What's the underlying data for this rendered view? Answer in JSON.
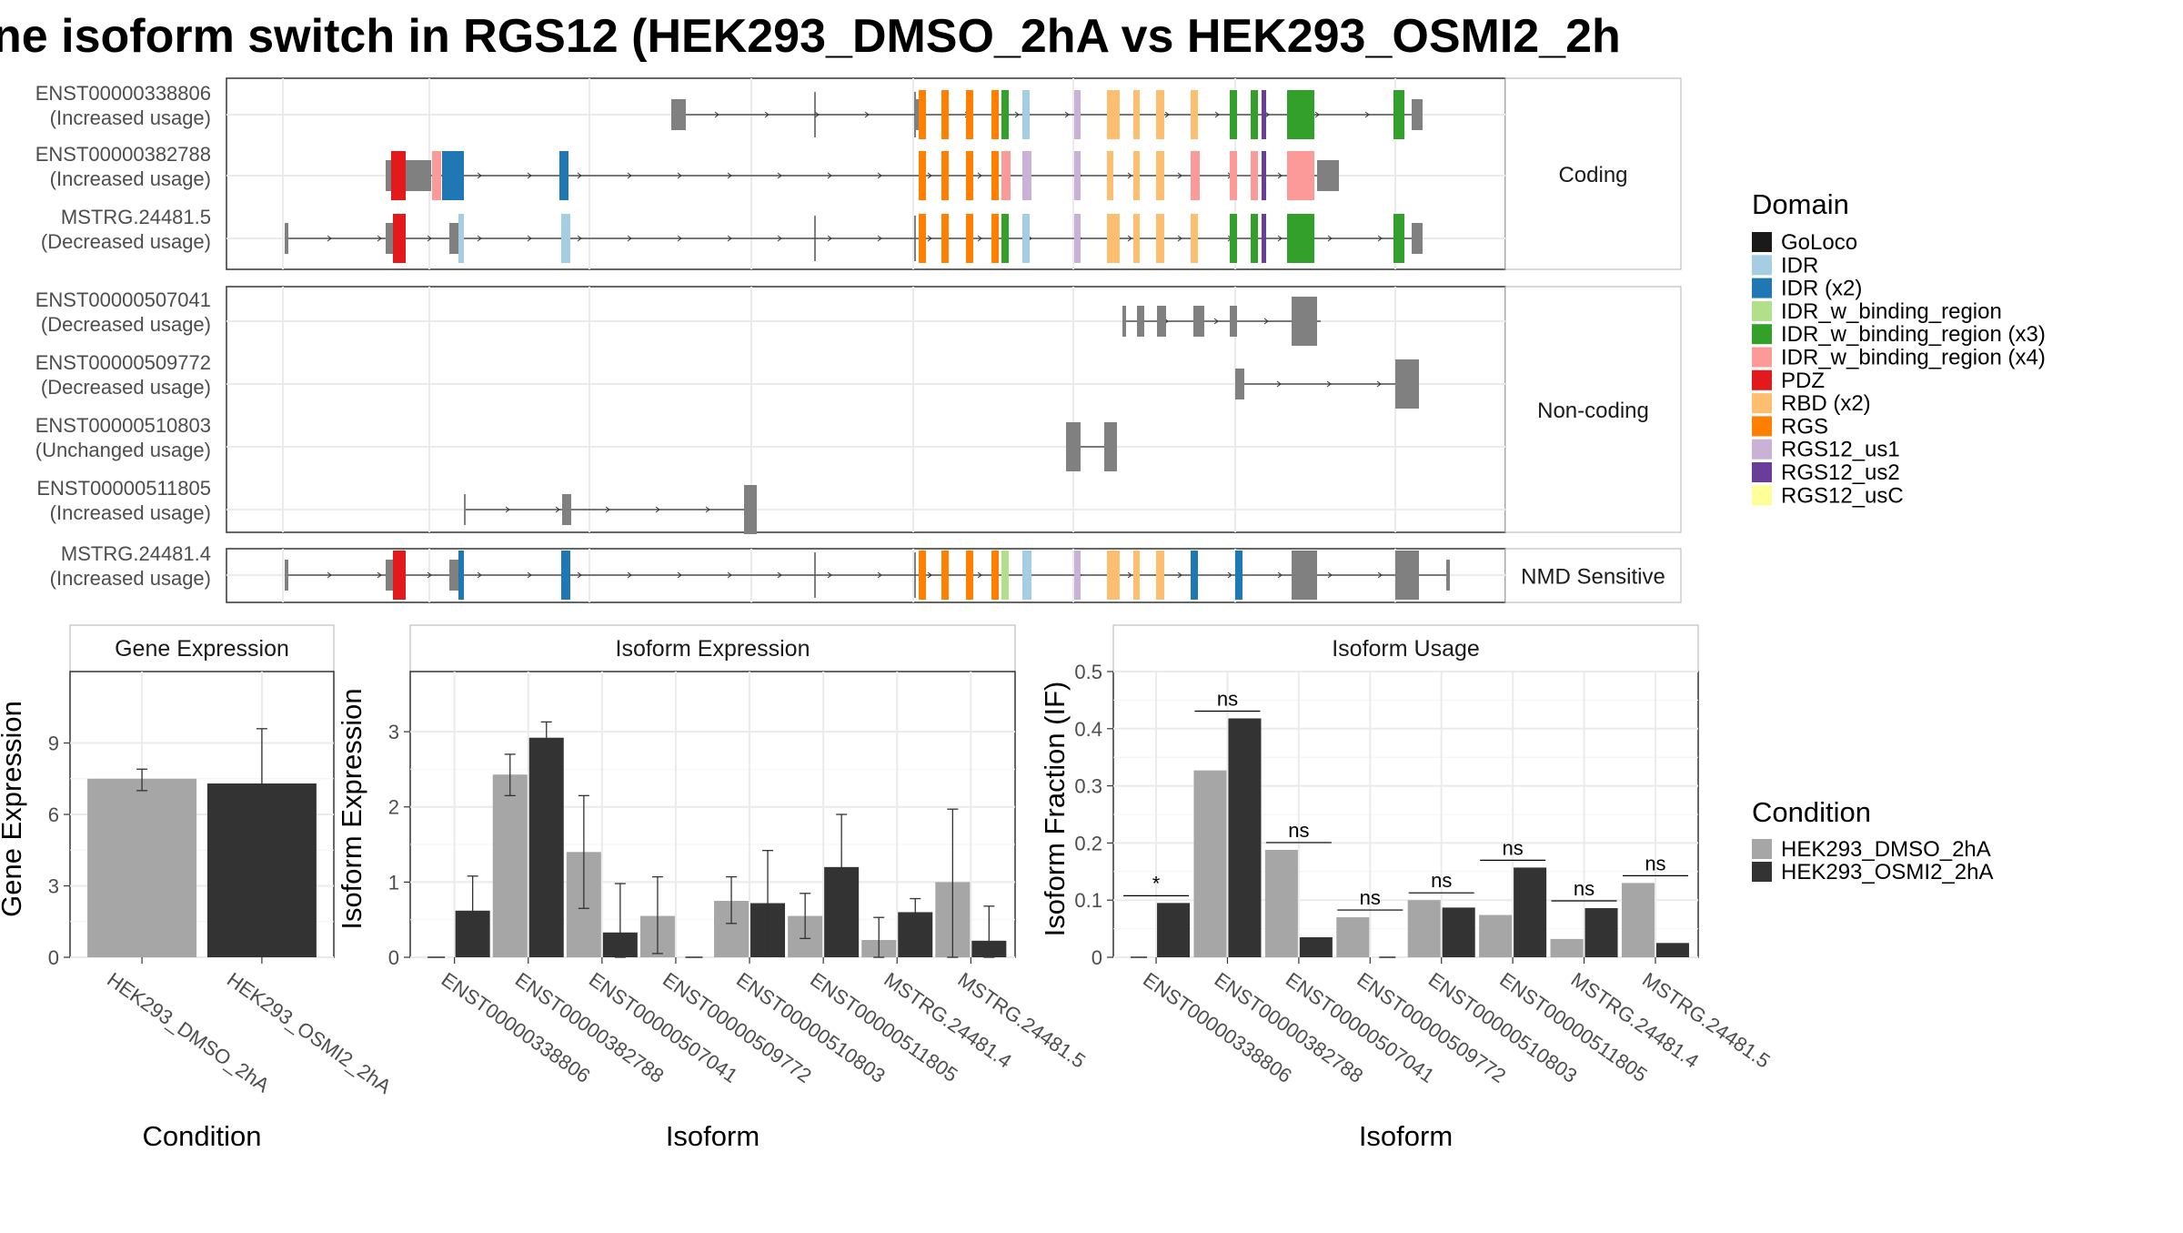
{
  "title": "ne isoform switch in RGS12 (HEK293_DMSO_2hA vs HEK293_OSMI2_2h",
  "colors": {
    "cond_dmso": "#a6a6a6",
    "cond_osmi": "#333333",
    "exon_gray": "#808080"
  },
  "domain_legend": {
    "title": "Domain",
    "items": [
      {
        "label": "GoLoco",
        "color": "#1a1a1a"
      },
      {
        "label": "IDR",
        "color": "#a6cee3"
      },
      {
        "label": "IDR (x2)",
        "color": "#1f78b4"
      },
      {
        "label": "IDR_w_binding_region",
        "color": "#b2df8a"
      },
      {
        "label": "IDR_w_binding_region (x3)",
        "color": "#33a02c"
      },
      {
        "label": "IDR_w_binding_region (x4)",
        "color": "#fb9a99"
      },
      {
        "label": "PDZ",
        "color": "#e31a1c"
      },
      {
        "label": "RBD (x2)",
        "color": "#fdbf6f"
      },
      {
        "label": "RGS",
        "color": "#ff7f00"
      },
      {
        "label": "RGS12_us1",
        "color": "#cab2d6"
      },
      {
        "label": "RGS12_us2",
        "color": "#6a3d9a"
      },
      {
        "label": "RGS12_usC",
        "color": "#ffff99"
      }
    ]
  },
  "condition_legend": {
    "title": "Condition",
    "items": [
      {
        "label": "HEK293_DMSO_2hA",
        "color": "#a6a6a6"
      },
      {
        "label": "HEK293_OSMI2_2hA",
        "color": "#333333"
      }
    ]
  },
  "structure_groups": [
    {
      "label": "Coding",
      "transcripts": [
        {
          "id": "ENST00000338806",
          "usage": "(Increased usage)"
        },
        {
          "id": "ENST00000382788",
          "usage": "(Increased usage)"
        },
        {
          "id": "MSTRG.24481.5",
          "usage": "(Decreased usage)"
        }
      ]
    },
    {
      "label": "Non-coding",
      "transcripts": [
        {
          "id": "ENST00000507041",
          "usage": "(Decreased usage)"
        },
        {
          "id": "ENST00000509772",
          "usage": "(Decreased usage)"
        },
        {
          "id": "ENST00000510803",
          "usage": "(Unchanged usage)"
        },
        {
          "id": "ENST00000511805",
          "usage": "(Increased usage)"
        }
      ]
    },
    {
      "label": "NMD Sensitive",
      "transcripts": [
        {
          "id": "MSTRG.24481.4",
          "usage": "(Increased usage)"
        }
      ]
    }
  ],
  "chart_data": [
    {
      "type": "bar",
      "title": "Gene Expression",
      "xlabel": "Condition",
      "ylabel": "Gene Expression",
      "ylim": [
        0,
        12
      ],
      "yticks": [
        0,
        3,
        6,
        9
      ],
      "categories": [
        "HEK293_DMSO_2hA",
        "HEK293_OSMI2_2hA"
      ],
      "values": [
        7.5,
        7.3
      ],
      "errors": [
        [
          7.0,
          7.9
        ],
        [
          5.0,
          9.6
        ]
      ],
      "grid": true
    },
    {
      "type": "bar",
      "title": "Isoform Expression",
      "xlabel": "Isoform",
      "ylabel": "Isoform Expression",
      "ylim": [
        0,
        3.8
      ],
      "yticks": [
        0,
        1,
        2,
        3
      ],
      "categories": [
        "ENST00000338806",
        "ENST00000382788",
        "ENST00000507041",
        "ENST00000509772",
        "ENST00000510803",
        "ENST00000511805",
        "MSTRG.24481.4",
        "MSTRG.24481.5"
      ],
      "series": [
        {
          "name": "HEK293_DMSO_2hA",
          "values": [
            0,
            2.43,
            1.4,
            0.55,
            0.75,
            0.55,
            0.23,
            1.0
          ],
          "errors": [
            [
              0,
              0
            ],
            [
              2.15,
              2.7
            ],
            [
              0.65,
              2.15
            ],
            [
              0.05,
              1.07
            ],
            [
              0.45,
              1.07
            ],
            [
              0.25,
              0.85
            ],
            [
              0.0,
              0.53
            ],
            [
              0.0,
              1.97
            ]
          ]
        },
        {
          "name": "HEK293_OSMI2_2hA",
          "values": [
            0.62,
            2.92,
            0.33,
            0,
            0.72,
            1.2,
            0.6,
            0.22
          ],
          "errors": [
            [
              0.15,
              1.08
            ],
            [
              2.7,
              3.13
            ],
            [
              0.0,
              0.98
            ],
            [
              0,
              0
            ],
            [
              0.02,
              1.42
            ],
            [
              0.5,
              1.9
            ],
            [
              0.43,
              0.78
            ],
            [
              0.0,
              0.68
            ]
          ]
        }
      ],
      "grid": true
    },
    {
      "type": "bar",
      "title": "Isoform Usage",
      "xlabel": "Isoform",
      "ylabel": "Isoform Fraction (IF)",
      "ylim": [
        0,
        0.5
      ],
      "yticks": [
        0.0,
        0.1,
        0.2,
        0.3,
        0.4,
        0.5
      ],
      "categories": [
        "ENST00000338806",
        "ENST00000382788",
        "ENST00000507041",
        "ENST00000509772",
        "ENST00000510803",
        "ENST00000511805",
        "MSTRG.24481.4",
        "MSTRG.24481.5"
      ],
      "series": [
        {
          "name": "HEK293_DMSO_2hA",
          "values": [
            0,
            0.327,
            0.188,
            0.07,
            0.1,
            0.074,
            0.032,
            0.13
          ]
        },
        {
          "name": "HEK293_OSMI2_2hA",
          "values": [
            0.095,
            0.418,
            0.035,
            0,
            0.087,
            0.157,
            0.086,
            0.025
          ]
        }
      ],
      "significance": [
        "*",
        "ns",
        "ns",
        "ns",
        "ns",
        "ns",
        "ns",
        "ns"
      ],
      "grid": true
    }
  ]
}
